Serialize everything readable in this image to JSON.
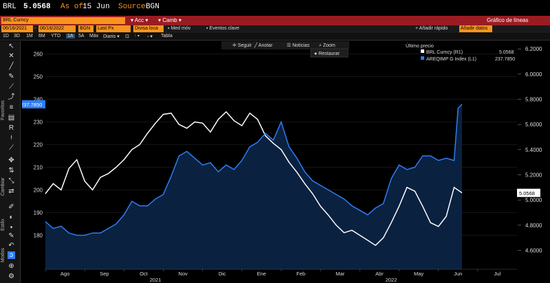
{
  "title_bar": {
    "ticker": "BRL",
    "price": "5.0568",
    "as_of_label": "As of",
    "as_of_date": "15 Jun",
    "source_label": "Source",
    "source": "BGN"
  },
  "security_bar": {
    "security": "BRL Curncy",
    "actions_label": "Acc",
    "change_label": "Camb",
    "chart_title": "Gráfico de líneas"
  },
  "toolbar": {
    "start_date": "06/16/2021",
    "end_date": "06/16/2022",
    "source_field": "BGN",
    "price_field": "Last Px",
    "currency_field": "Divisa loca",
    "med_mov": "Med móv",
    "eventos": "Eventos clave",
    "add_quick": "+ Añadir rápido",
    "add_data": "Añadir datos"
  },
  "period_bar": {
    "periods": [
      "1D",
      "3D",
      "1M",
      "6M",
      "YTD",
      "1A",
      "5A",
      "Máx"
    ],
    "active_period": "1A",
    "frequency": "Diario",
    "table_label": "Tabla"
  },
  "chart_tools": {
    "seguir": "Seguir",
    "anotar": "Anotar",
    "noticias": "Noticias",
    "zoom": "Zoom",
    "restaurar": "Restaurar"
  },
  "sidebar": {
    "labels": [
      "Favoritos",
      "Cambiar",
      "Estilo",
      "Modos"
    ]
  },
  "colors": {
    "accent_orange": "#f7941d",
    "header_red": "#9a1c22",
    "series_white": "#ffffff",
    "series_blue": "#2e7df7",
    "fill_navy": "#0b2140"
  },
  "chart_data": {
    "type": "line",
    "title": "Gráfico de líneas",
    "legend": {
      "header": "Último precio",
      "placement": "top-right",
      "entries": [
        {
          "name": "BRL Curncy  (R1)",
          "value": "5.0568",
          "color": "#ffffff"
        },
        {
          "name": "AREQIMP G Index  (L1)",
          "value": "237.7850",
          "color": "#2e7df7"
        }
      ]
    },
    "x_month_labels": [
      "Ago",
      "Sep",
      "Oct",
      "Nov",
      "Dic",
      "Ene",
      "Feb",
      "Mar",
      "Abr",
      "May",
      "Jun",
      "Jul"
    ],
    "x_year_labels": [
      {
        "label": "2021",
        "month_index": 2.3
      },
      {
        "label": "2022",
        "month_index": 8.3
      }
    ],
    "x_range_months": [
      -0.5,
      11.5
    ],
    "left_axis": {
      "ylim": [
        165,
        265
      ],
      "ticks": [
        180,
        190,
        200,
        210,
        220,
        230,
        240,
        250,
        260
      ]
    },
    "right_axis": {
      "ylim": [
        4.45,
        6.25
      ],
      "ticks": [
        4.6,
        4.8,
        5.0,
        5.2,
        5.4,
        5.6,
        5.8,
        6.0,
        6.2
      ]
    },
    "left_last_value": "237.7850",
    "right_last_value": "5.0568",
    "series": [
      {
        "name": "BRL Curncy (R1)",
        "axis": "right",
        "color": "#ffffff",
        "x": [
          -0.5,
          -0.3,
          -0.1,
          0.1,
          0.3,
          0.5,
          0.7,
          0.9,
          1.1,
          1.3,
          1.5,
          1.7,
          1.9,
          2.1,
          2.3,
          2.5,
          2.7,
          2.9,
          3.1,
          3.3,
          3.5,
          3.7,
          3.9,
          4.1,
          4.3,
          4.5,
          4.7,
          4.9,
          5.1,
          5.3,
          5.5,
          5.7,
          5.9,
          6.1,
          6.3,
          6.5,
          6.7,
          6.9,
          7.1,
          7.3,
          7.5,
          7.7,
          7.9,
          8.1,
          8.3,
          8.5,
          8.7,
          8.9,
          9.1,
          9.3,
          9.5,
          9.7,
          9.9,
          10.1
        ],
        "values": [
          5.05,
          5.13,
          5.08,
          5.25,
          5.32,
          5.15,
          5.08,
          5.18,
          5.21,
          5.26,
          5.32,
          5.4,
          5.44,
          5.53,
          5.61,
          5.68,
          5.69,
          5.6,
          5.57,
          5.62,
          5.61,
          5.54,
          5.64,
          5.7,
          5.63,
          5.59,
          5.69,
          5.64,
          5.51,
          5.45,
          5.4,
          5.3,
          5.22,
          5.13,
          5.05,
          4.95,
          4.88,
          4.8,
          4.74,
          4.76,
          4.72,
          4.68,
          4.64,
          4.7,
          4.82,
          4.95,
          5.1,
          5.07,
          4.95,
          4.82,
          4.79,
          4.87,
          5.1,
          5.0568
        ]
      },
      {
        "name": "AREQIMP G Index (L1)",
        "axis": "left",
        "color": "#2e7df7",
        "x": [
          -0.5,
          -0.3,
          -0.1,
          0.1,
          0.3,
          0.5,
          0.7,
          0.9,
          1.1,
          1.3,
          1.5,
          1.7,
          1.9,
          2.1,
          2.3,
          2.5,
          2.7,
          2.9,
          3.1,
          3.3,
          3.5,
          3.7,
          3.9,
          4.1,
          4.3,
          4.5,
          4.7,
          4.9,
          5.1,
          5.3,
          5.5,
          5.7,
          5.9,
          6.1,
          6.3,
          6.5,
          6.7,
          6.9,
          7.1,
          7.3,
          7.5,
          7.7,
          7.9,
          8.1,
          8.3,
          8.5,
          8.7,
          8.9,
          9.1,
          9.3,
          9.5,
          9.7,
          9.9,
          10.0,
          10.1
        ],
        "values": [
          186,
          183,
          184,
          181,
          180,
          180,
          181,
          181,
          183,
          185,
          189,
          195,
          193,
          193,
          196,
          198,
          206,
          215,
          217,
          214,
          211,
          212,
          208,
          211,
          209,
          213,
          219,
          221,
          225,
          222,
          230,
          219,
          214,
          208,
          204,
          202,
          200,
          198,
          196,
          193,
          191,
          189,
          192,
          194,
          205,
          211,
          209,
          210,
          215,
          215,
          213,
          214,
          213,
          236,
          237.785
        ]
      }
    ]
  }
}
